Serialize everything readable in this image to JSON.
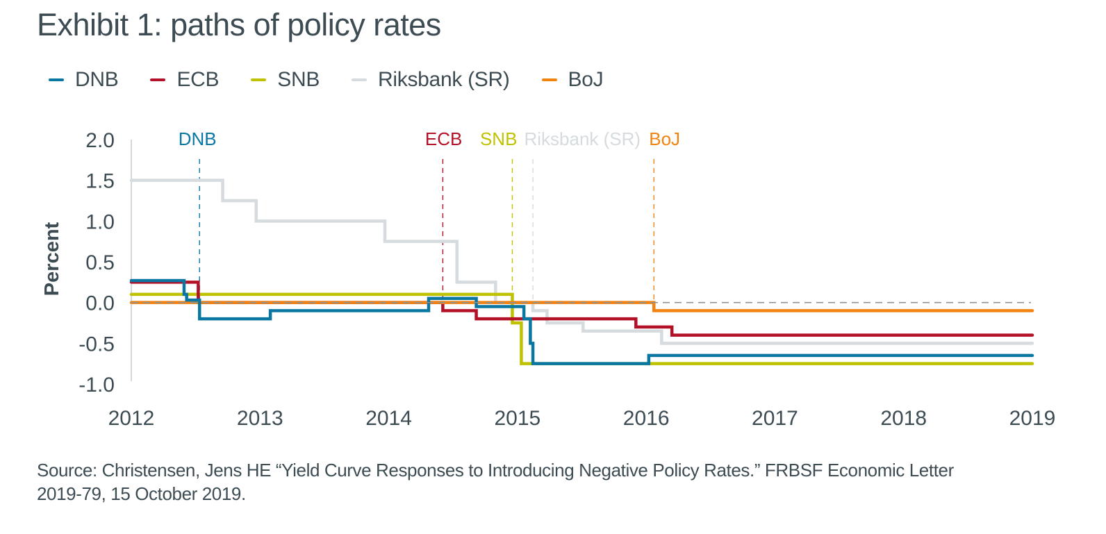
{
  "title": "Exhibit 1: paths of policy rates",
  "legend": [
    {
      "label": "DNB",
      "color": "#0a77a3"
    },
    {
      "label": "ECB",
      "color": "#b31128"
    },
    {
      "label": "SNB",
      "color": "#bfc200"
    },
    {
      "label": "Riksbank (SR)",
      "color": "#d5dbde"
    },
    {
      "label": "BoJ",
      "color": "#f28311"
    }
  ],
  "source": {
    "line1": "Source: Christensen, Jens HE “Yield Curve Responses to Introducing Negative Policy Rates.” FRBSF Economic Letter",
    "line2": "2019-79, 15 October 2019."
  },
  "chart_data": {
    "type": "line",
    "step": true,
    "title": "Exhibit 1: paths of policy rates",
    "xlabel": "",
    "ylabel": "Percent",
    "xlim": [
      2012,
      2019
    ],
    "ylim": [
      -1.0,
      2.0
    ],
    "x_ticks": [
      2012,
      2013,
      2014,
      2015,
      2016,
      2017,
      2018,
      2019
    ],
    "x_tick_labels": [
      "2012",
      "2013",
      "2014",
      "2015",
      "2016",
      "2017",
      "2018",
      "2019"
    ],
    "y_ticks": [
      2.0,
      1.5,
      1.0,
      0.5,
      0.0,
      -0.5,
      -1.0
    ],
    "y_tick_labels": [
      "2.0",
      "1.5",
      "1.0",
      "0.5",
      "0.0",
      "-0.5",
      "-1.0"
    ],
    "grid": false,
    "zero_line": {
      "value": 0.0,
      "style": "dashed",
      "color": "#8c9396"
    },
    "legend_position": "top-left",
    "series": [
      {
        "name": "Riksbank (SR)",
        "color": "#d5dbde",
        "x": [
          2012.0,
          2012.71,
          2012.97,
          2013.97,
          2014.53,
          2014.83,
          2015.12,
          2015.23,
          2015.51,
          2016.12,
          2019.0
        ],
        "y": [
          1.5,
          1.25,
          1.0,
          0.75,
          0.25,
          0.0,
          -0.1,
          -0.25,
          -0.35,
          -0.5,
          -0.5
        ]
      },
      {
        "name": "SNB",
        "color": "#bfc200",
        "x": [
          2012.0,
          2014.96,
          2015.03,
          2019.0
        ],
        "y": [
          0.1,
          -0.25,
          -0.75,
          -0.75
        ]
      },
      {
        "name": "ECB",
        "color": "#b31128",
        "x": [
          2012.0,
          2012.52,
          2014.42,
          2014.68,
          2015.92,
          2016.2,
          2019.0
        ],
        "y": [
          0.25,
          0.0,
          -0.1,
          -0.2,
          -0.3,
          -0.4,
          -0.4
        ]
      },
      {
        "name": "BoJ",
        "color": "#f28311",
        "x": [
          2012.0,
          2016.06,
          2019.0
        ],
        "y": [
          0.0,
          -0.1,
          -0.1
        ]
      },
      {
        "name": "DNB",
        "color": "#0a77a3",
        "x": [
          2012.0,
          2012.41,
          2012.43,
          2012.53,
          2013.08,
          2014.31,
          2014.68,
          2015.05,
          2015.1,
          2015.12,
          2016.02,
          2019.0
        ],
        "y": [
          0.27,
          0.1,
          0.03,
          -0.2,
          -0.1,
          0.05,
          -0.05,
          -0.2,
          -0.5,
          -0.75,
          -0.65,
          -0.65
        ]
      }
    ],
    "annotations": [
      {
        "label": "DNB",
        "x": 2012.53,
        "color": "#0a77a3"
      },
      {
        "label": "ECB",
        "x": 2014.42,
        "color": "#b31128"
      },
      {
        "label": "SNB",
        "x": 2014.96,
        "color": "#bfc200"
      },
      {
        "label": "Riksbank (SR)",
        "x": 2015.12,
        "color": "#d5dbde"
      },
      {
        "label": "BoJ",
        "x": 2016.06,
        "color": "#f28311"
      }
    ]
  }
}
